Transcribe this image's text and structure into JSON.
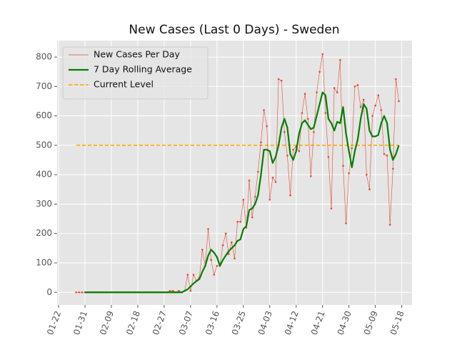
{
  "chart_data": {
    "type": "line",
    "title": "New Cases (Last 0 Days) - Sweden",
    "x": [
      6,
      7,
      8,
      9,
      10,
      11,
      12,
      13,
      14,
      15,
      16,
      17,
      18,
      19,
      20,
      21,
      22,
      23,
      24,
      25,
      26,
      27,
      28,
      29,
      30,
      31,
      32,
      33,
      34,
      35,
      36,
      37,
      38,
      39,
      40,
      41,
      42,
      43,
      44,
      45,
      46,
      47,
      48,
      49,
      50,
      51,
      52,
      53,
      54,
      55,
      56,
      57,
      58,
      59,
      60,
      61,
      62,
      63,
      64,
      65,
      66,
      67,
      68,
      69,
      70,
      71,
      72,
      73,
      74,
      75,
      76,
      77,
      78,
      79,
      80,
      81,
      82,
      83,
      84,
      85,
      86,
      87,
      88,
      89,
      90,
      91,
      92,
      93,
      94,
      95,
      96,
      97,
      98,
      99,
      100,
      101,
      102,
      103,
      104,
      105,
      106,
      107,
      108,
      109,
      110,
      111,
      112,
      113,
      114,
      115,
      116
    ],
    "series": [
      {
        "name": "New Cases Per Day",
        "color": "#E24A33",
        "style": "thin-dots",
        "values": [
          0,
          0,
          0,
          0,
          0,
          0,
          0,
          0,
          0,
          0,
          0,
          0,
          0,
          0,
          0,
          0,
          0,
          0,
          0,
          0,
          0,
          0,
          0,
          0,
          0,
          0,
          0,
          0,
          0,
          0,
          0,
          0,
          5,
          5,
          0,
          5,
          0,
          5,
          60,
          5,
          60,
          40,
          50,
          145,
          90,
          215,
          110,
          60,
          90,
          90,
          160,
          200,
          130,
          170,
          115,
          240,
          240,
          315,
          220,
          380,
          255,
          325,
          410,
          510,
          620,
          565,
          315,
          390,
          375,
          725,
          720,
          545,
          465,
          330,
          485,
          495,
          480,
          610,
          675,
          590,
          395,
          545,
          680,
          750,
          810,
          610,
          460,
          285,
          695,
          680,
          790,
          430,
          235,
          405,
          490,
          700,
          705,
          630,
          655,
          400,
          350,
          600,
          635,
          670,
          620,
          470,
          465,
          230,
          420,
          725,
          650
        ]
      },
      {
        "name": "7 Day Rolling Average",
        "color": "green",
        "style": "thick",
        "values": [
          null,
          null,
          null,
          0,
          0,
          0,
          0,
          0,
          0,
          0,
          0,
          0,
          0,
          0,
          0,
          0,
          0,
          0,
          0,
          0,
          0,
          0,
          0,
          0,
          0,
          0,
          0,
          0,
          0,
          0,
          0,
          0,
          0,
          0,
          0,
          0,
          0,
          5,
          10,
          20,
          30,
          38,
          45,
          70,
          90,
          125,
          145,
          135,
          120,
          90,
          110,
          125,
          140,
          150,
          160,
          175,
          180,
          215,
          225,
          280,
          285,
          300,
          330,
          400,
          485,
          485,
          480,
          440,
          460,
          500,
          560,
          590,
          560,
          470,
          450,
          480,
          540,
          575,
          585,
          570,
          555,
          560,
          600,
          640,
          680,
          670,
          590,
          575,
          550,
          580,
          575,
          630,
          540,
          480,
          425,
          480,
          520,
          590,
          640,
          625,
          550,
          530,
          530,
          535,
          575,
          600,
          575,
          485,
          450,
          470,
          500
        ]
      }
    ],
    "hline": {
      "name": "Current Level",
      "value": 500,
      "color": "orange"
    },
    "xlim": [
      -0.5,
      120.5
    ],
    "xticks": [
      {
        "value": 0,
        "label": "01-22"
      },
      {
        "value": 9,
        "label": "01-31"
      },
      {
        "value": 18,
        "label": "02-09"
      },
      {
        "value": 27,
        "label": "02-18"
      },
      {
        "value": 36,
        "label": "02-27"
      },
      {
        "value": 45,
        "label": "03-07"
      },
      {
        "value": 54,
        "label": "03-16"
      },
      {
        "value": 63,
        "label": "03-25"
      },
      {
        "value": 72,
        "label": "04-03"
      },
      {
        "value": 81,
        "label": "04-12"
      },
      {
        "value": 90,
        "label": "04-21"
      },
      {
        "value": 99,
        "label": "04-30"
      },
      {
        "value": 108,
        "label": "05-09"
      },
      {
        "value": 117,
        "label": "05-18"
      }
    ],
    "ylim": [
      -43,
      856
    ],
    "yticks": [
      0,
      100,
      200,
      300,
      400,
      500,
      600,
      700,
      800
    ],
    "grid": true,
    "legend": "upper left"
  }
}
